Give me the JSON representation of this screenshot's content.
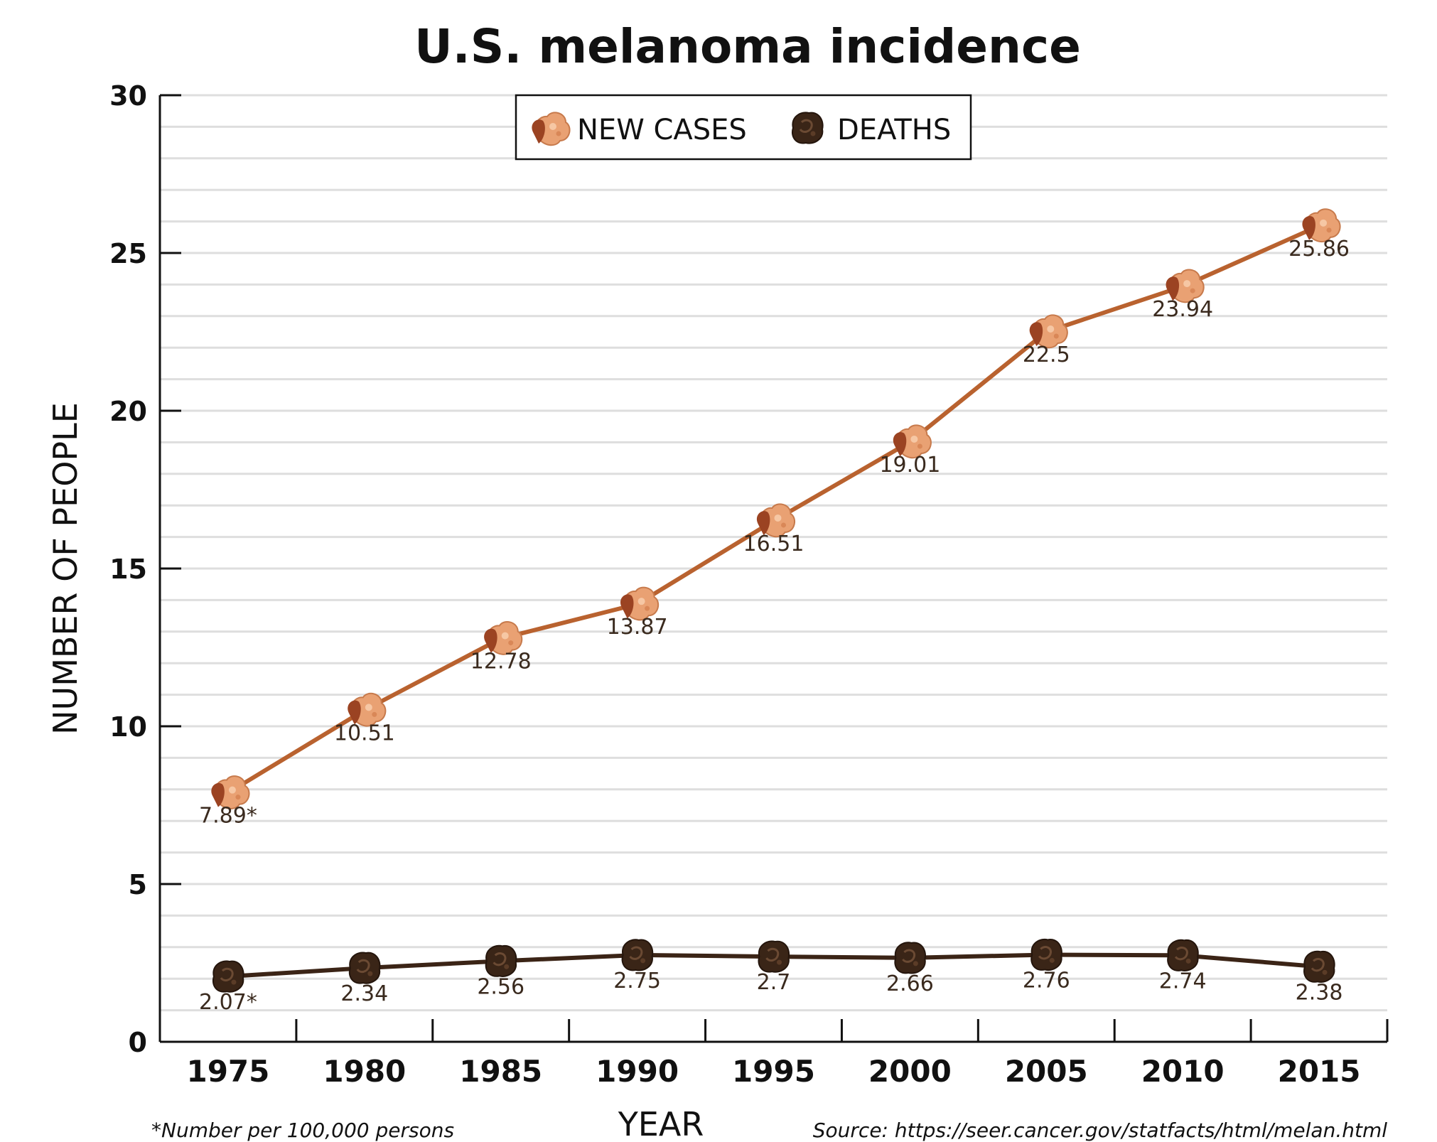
{
  "chart_data": {
    "type": "line",
    "title": "U.S. melanoma incidence",
    "xlabel": "YEAR",
    "ylabel": "NUMBER OF PEOPLE",
    "categories": [
      "1975",
      "1980",
      "1985",
      "1990",
      "1995",
      "2000",
      "2005",
      "2010",
      "2015"
    ],
    "ylim": [
      0,
      30
    ],
    "yticks": [
      "0",
      "5",
      "10",
      "15",
      "20",
      "25",
      "30"
    ],
    "grid": true,
    "legend_position": "top-center",
    "series": [
      {
        "name": "NEW CASES",
        "color": "#b9622f",
        "marker": "orange-blob",
        "values": [
          7.89,
          10.51,
          12.78,
          13.87,
          16.51,
          19.01,
          22.5,
          23.94,
          25.86
        ],
        "labels": [
          "7.89*",
          "10.51",
          "12.78",
          "13.87",
          "16.51",
          "19.01",
          "22.5",
          "23.94",
          "25.86"
        ]
      },
      {
        "name": "DEATHS",
        "color": "#3b2416",
        "marker": "dark-brown-blob",
        "values": [
          2.07,
          2.34,
          2.56,
          2.75,
          2.7,
          2.66,
          2.76,
          2.74,
          2.38
        ],
        "labels": [
          "2.07*",
          "2.34",
          "2.56",
          "2.75",
          "2.7",
          "2.66",
          "2.76",
          "2.74",
          "2.38"
        ]
      }
    ],
    "footnote": "*Number per 100,000 persons",
    "source": "Source: https://seer.cancer.gov/statfacts/html/melan.html"
  }
}
